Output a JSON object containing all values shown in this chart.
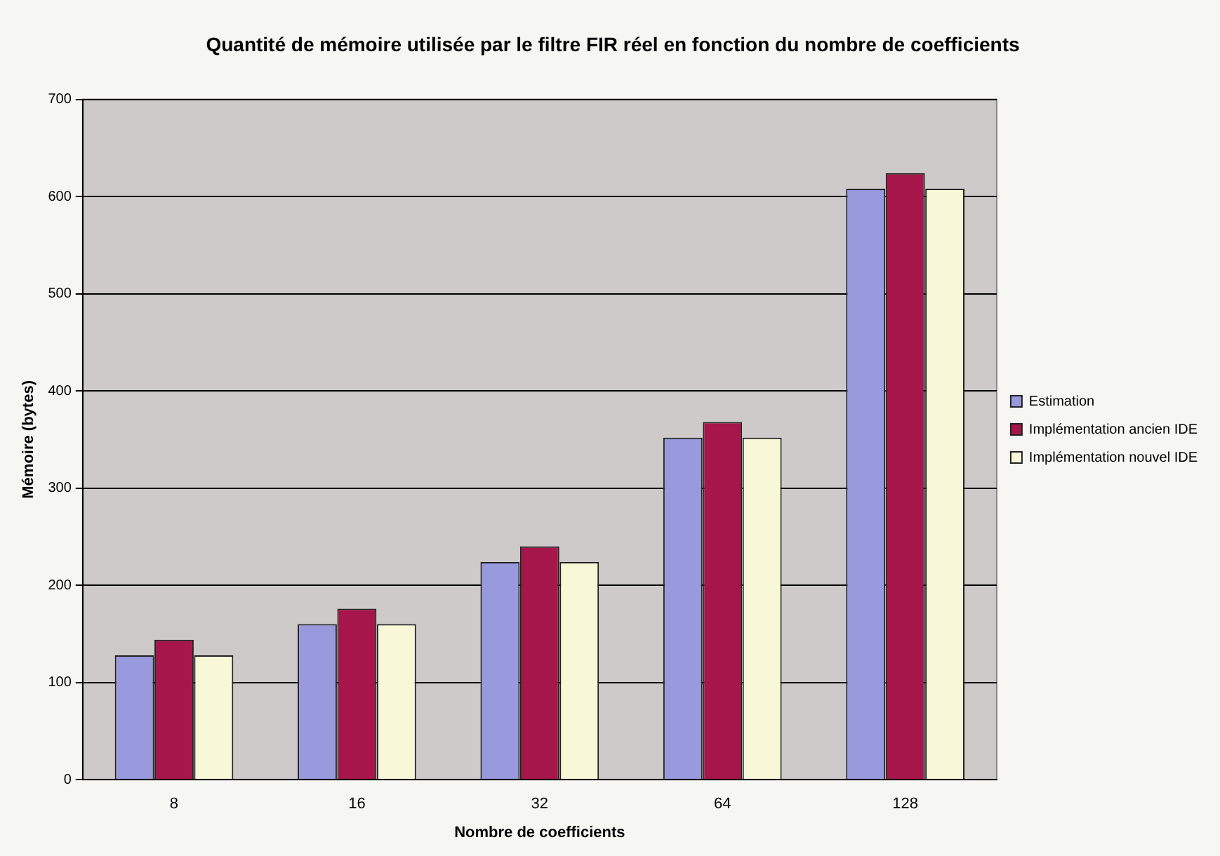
{
  "chart_data": {
    "type": "bar",
    "title": "Quantité de mémoire utilisée par le filtre FIR réel en fonction du nombre de coefficients",
    "xlabel": "Nombre de coefficients",
    "ylabel": "Mémoire (bytes)",
    "categories": [
      "8",
      "16",
      "32",
      "64",
      "128"
    ],
    "series": [
      {
        "name": "Estimation",
        "color": "#9999dd",
        "values": [
          128,
          160,
          224,
          352,
          608
        ]
      },
      {
        "name": "Implémentation ancien IDE",
        "color": "#a6164a",
        "values": [
          144,
          176,
          240,
          368,
          624
        ]
      },
      {
        "name": "Implémentation nouvel IDE",
        "color": "#f8f8d8",
        "values": [
          128,
          160,
          224,
          352,
          608
        ]
      }
    ],
    "ylim": [
      0,
      700
    ],
    "yticks": [
      0,
      100,
      200,
      300,
      400,
      500,
      600,
      700
    ],
    "grid": "y",
    "legend": "right"
  }
}
